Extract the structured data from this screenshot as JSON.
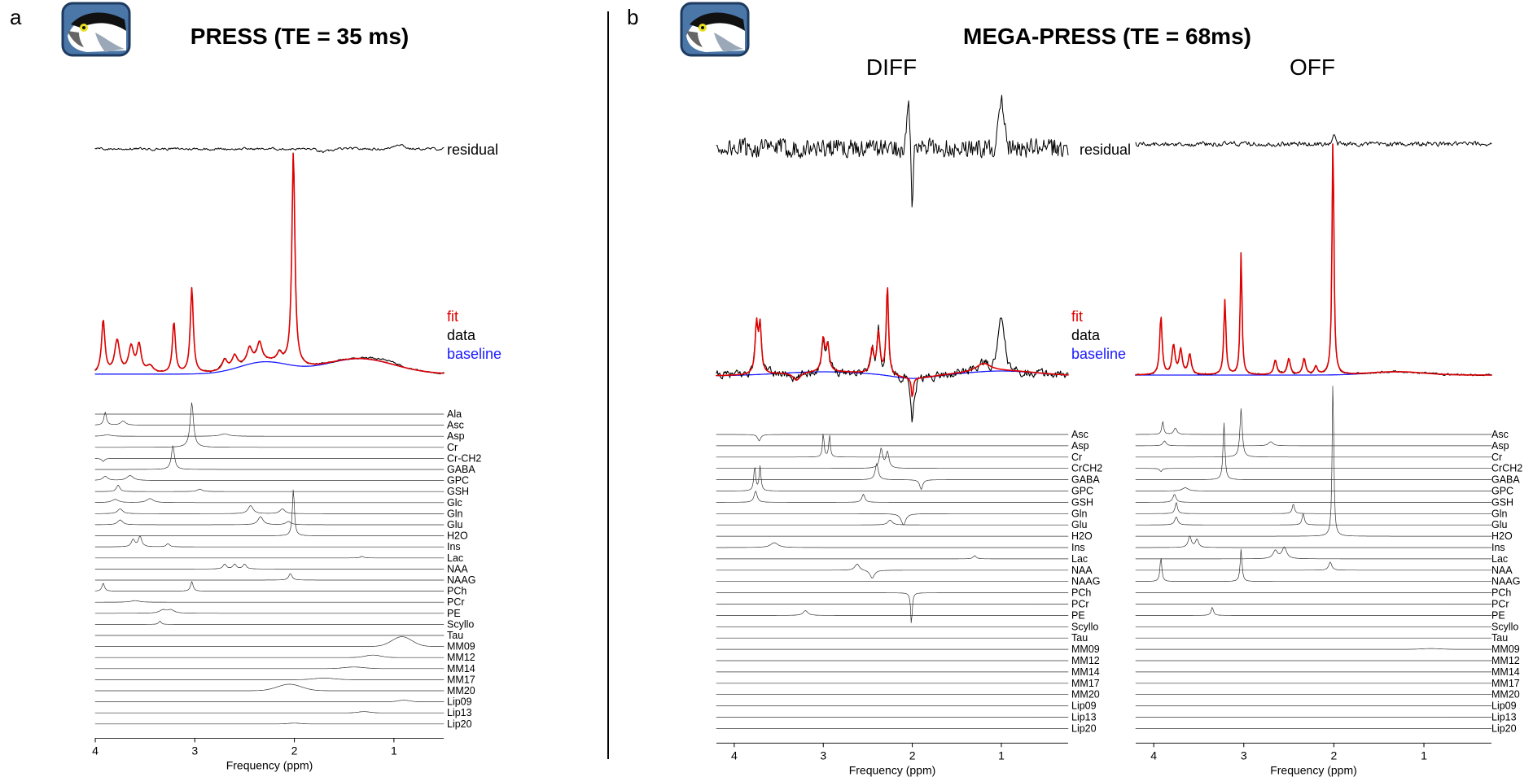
{
  "panels": [
    {
      "letter": "a",
      "title": "PRESS (TE = 35 ms)",
      "subplots": [
        {
          "subtitle": "",
          "residual_label": "residual",
          "legend": [
            {
              "label": "fit",
              "color": "#e00000"
            },
            {
              "label": "data",
              "color": "#000000"
            },
            {
              "label": "baseline",
              "color": "#1a1aff"
            }
          ],
          "metabolites": [
            "Ala",
            "Asc",
            "Asp",
            "Cr",
            "Cr-CH2",
            "GABA",
            "GPC",
            "GSH",
            "Glc",
            "Gln",
            "Glu",
            "H2O",
            "Ins",
            "Lac",
            "NAA",
            "NAAG",
            "PCh",
            "PCr",
            "PE",
            "Scyllo",
            "Tau",
            "MM09",
            "MM12",
            "MM14",
            "MM17",
            "MM20",
            "Lip09",
            "Lip13",
            "Lip20"
          ],
          "xlabel": "Frequency (ppm)",
          "xticks": [
            "4",
            "3",
            "2",
            "1"
          ]
        }
      ]
    },
    {
      "letter": "b",
      "title": "MEGA-PRESS (TE = 68ms)",
      "subplots": [
        {
          "subtitle": "DIFF",
          "residual_label": "residual",
          "legend": [
            {
              "label": "fit",
              "color": "#e00000"
            },
            {
              "label": "data",
              "color": "#000000"
            },
            {
              "label": "baseline",
              "color": "#1a1aff"
            }
          ],
          "metabolites": [
            "Asc",
            "Asp",
            "Cr",
            "CrCH2",
            "GABA",
            "GPC",
            "GSH",
            "Gln",
            "Glu",
            "H2O",
            "Ins",
            "Lac",
            "NAA",
            "NAAG",
            "PCh",
            "PCr",
            "PE",
            "Scyllo",
            "Tau",
            "MM09",
            "MM12",
            "MM14",
            "MM17",
            "MM20",
            "Lip09",
            "Lip13",
            "Lip20"
          ],
          "xlabel": "Frequency (ppm)",
          "xticks": [
            "4",
            "3",
            "2",
            "1"
          ]
        },
        {
          "subtitle": "OFF",
          "residual_label": "",
          "legend": [],
          "metabolites": [
            "Asc",
            "Asp",
            "Cr",
            "CrCH2",
            "GABA",
            "GPC",
            "GSH",
            "Gln",
            "Glu",
            "H2O",
            "Ins",
            "Lac",
            "NAA",
            "NAAG",
            "PCh",
            "PCr",
            "PE",
            "Scyllo",
            "Tau",
            "MM09",
            "MM12",
            "MM14",
            "MM17",
            "MM20",
            "Lip09",
            "Lip13",
            "Lip20"
          ],
          "xlabel": "Frequency (ppm)",
          "xticks": [
            "4",
            "3",
            "2",
            "1"
          ]
        }
      ]
    }
  ],
  "chart_data": [
    {
      "type": "line",
      "title": "PRESS (TE = 35 ms)",
      "xlabel": "Frequency (ppm)",
      "xlim": [
        4.0,
        0.5
      ],
      "x_axis_reversed": true,
      "series": [
        {
          "name": "fit",
          "color": "#e00000"
        },
        {
          "name": "data",
          "color": "#000000"
        },
        {
          "name": "baseline",
          "color": "#1a1aff"
        },
        {
          "name": "residual",
          "color": "#000000"
        }
      ],
      "peaks_ppm": {
        "NAA": 2.01,
        "Cr": 3.03,
        "Cho": 3.21,
        "Cr2": 3.92
      },
      "grid": false
    },
    {
      "type": "line",
      "title": "DIFF",
      "xlabel": "Frequency (ppm)",
      "xlim": [
        4.2,
        0.8
      ],
      "x_axis_reversed": true,
      "series": [
        {
          "name": "fit",
          "color": "#e00000"
        },
        {
          "name": "data",
          "color": "#000000"
        },
        {
          "name": "baseline",
          "color": "#1a1aff"
        },
        {
          "name": "residual",
          "color": "#000000"
        }
      ],
      "peaks_ppm": {
        "Glx": 3.75,
        "GABA": 3.0,
        "GABA_2": 2.28,
        "NAA": 2.0
      },
      "grid": false
    },
    {
      "type": "line",
      "title": "OFF",
      "xlabel": "Frequency (ppm)",
      "xlim": [
        4.2,
        0.8
      ],
      "x_axis_reversed": true,
      "series": [
        {
          "name": "fit",
          "color": "#e00000"
        },
        {
          "name": "data",
          "color": "#000000"
        },
        {
          "name": "baseline",
          "color": "#1a1aff"
        },
        {
          "name": "residual",
          "color": "#000000"
        }
      ],
      "peaks_ppm": {
        "NAA": 2.01,
        "Cr": 3.03,
        "Cho": 3.21,
        "Cr2": 3.92
      },
      "grid": false
    }
  ]
}
